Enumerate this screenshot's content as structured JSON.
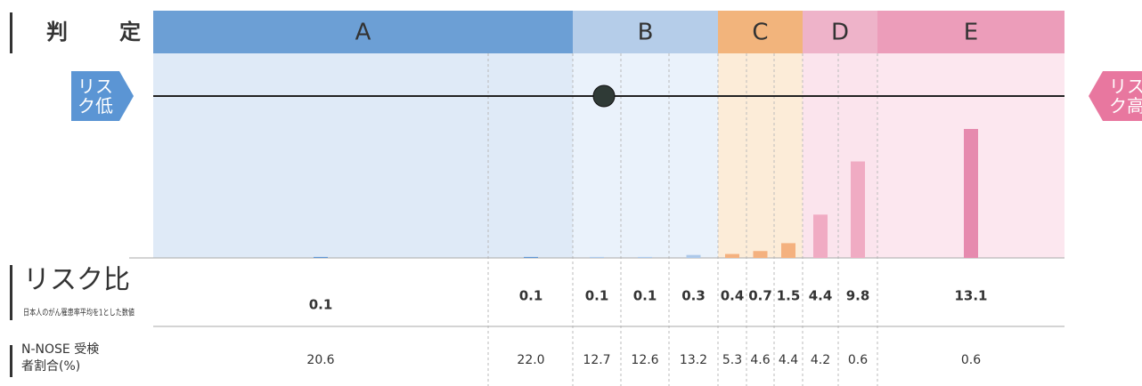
{
  "chart_data": {
    "type": "bar",
    "title": "判定",
    "groups": [
      {
        "name": "A",
        "columns": 2,
        "header_color": "#6c9fd5",
        "background": "#dfeaf7",
        "bar_color": "#5f95d3"
      },
      {
        "name": "B",
        "columns": 3,
        "header_color": "#b5cde9",
        "background": "#eaf2fb",
        "bar_color": "#adc9ea"
      },
      {
        "name": "C",
        "columns": 3,
        "header_color": "#f2b47c",
        "background": "#fcecd8",
        "bar_color": "#f4b17f"
      },
      {
        "name": "D",
        "columns": 2,
        "header_color": "#eeb3c9",
        "background": "#fbe4ed",
        "bar_color": "#f0abc3"
      },
      {
        "name": "E",
        "columns": 1,
        "header_color": "#ec9dba",
        "background": "#fce7ef",
        "bar_color": "#e68aae"
      }
    ],
    "low_label": "リスク低",
    "high_label": "リスク高",
    "result_column": 2,
    "series": [
      {
        "name": "リスク比",
        "note": "日本人のがん罹患率平均を1とした数値",
        "values": [
          0.1,
          0.1,
          0.1,
          0.1,
          0.3,
          0.4,
          0.7,
          1.5,
          4.4,
          9.8,
          13.1
        ],
        "label_colors": [
          "#333333",
          "#333333",
          "#333333",
          "#333333",
          "#333333",
          "#333333",
          "#333333",
          "#d0307a",
          "#d0307a",
          "#d0307a",
          "#d0307a"
        ]
      },
      {
        "name": "N-NOSE 受検者割合(%)",
        "values": [
          20.6,
          22,
          12.7,
          12.6,
          13.2,
          5.3,
          4.6,
          4.4,
          4.2,
          0.6,
          0.6
        ],
        "value_labels": [
          "20.6",
          "22.0",
          "12.7",
          "12.6",
          "13.2",
          "5.3",
          "4.6",
          "4.4",
          "4.2",
          "0.6",
          "0.6"
        ]
      }
    ]
  }
}
